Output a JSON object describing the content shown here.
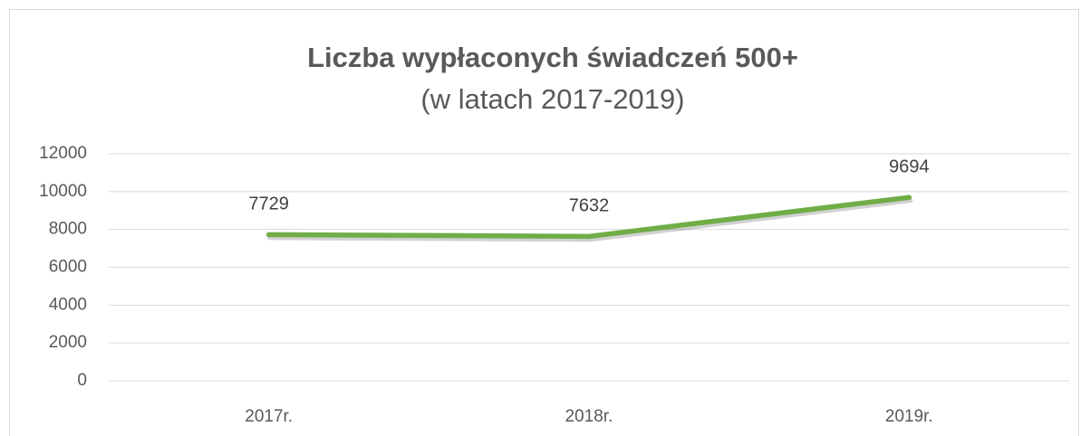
{
  "chart_data": {
    "type": "line",
    "title": "Liczba wypłaconych świadczeń 500+",
    "subtitle": "(w latach 2017-2019)",
    "categories": [
      "2017r.",
      "2018r.",
      "2019r."
    ],
    "series": [
      {
        "name": "Liczba wypłaconych świadczeń",
        "color": "#70ad47",
        "values": [
          7729,
          7632,
          9694
        ]
      }
    ],
    "ylim": [
      0,
      12000
    ],
    "yticks": [
      0,
      2000,
      4000,
      6000,
      8000,
      10000,
      12000
    ],
    "grid": true,
    "data_labels": true
  }
}
